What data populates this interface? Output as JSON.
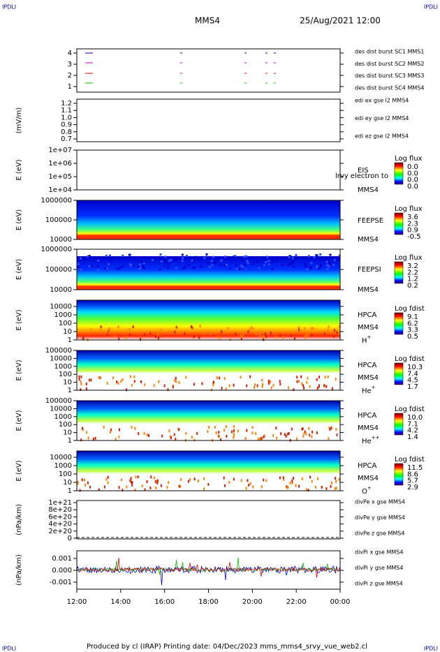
{
  "header": {
    "corner_label": "IPDLI",
    "title": "MMS4",
    "date": "25/Aug/2021 12:00"
  },
  "x_axis": {
    "ticks": [
      "12:00",
      "14:00",
      "16:00",
      "18:00",
      "20:00",
      "22:00",
      "00:00"
    ]
  },
  "panels": [
    {
      "y_ticks": [
        "4",
        "3",
        "2",
        "1"
      ],
      "legend": [
        {
          "text": "des dist burst SC1 MMS1",
          "color": "#0000cc"
        },
        {
          "text": "des dist burst SC2 MMS2",
          "color": "#cc00cc"
        },
        {
          "text": "des dist burst SC3 MMS3",
          "color": "#dd0000"
        },
        {
          "text": "des dist burst SC4 MMS4",
          "color": "#00bb00"
        }
      ]
    },
    {
      "y_label": "(mV/m)",
      "y_ticks": [
        "1.2",
        "1.1",
        "1.0",
        "0.9",
        "0.8",
        "0.7"
      ],
      "legend": [
        {
          "text": "edi ex gse l2 MMS4",
          "color": "#dd0000"
        },
        {
          "text": "edi ey gse l2 MMS4",
          "color": "#00bb00"
        },
        {
          "text": "edi ez gse l2 MMS4",
          "color": "#0000cc"
        }
      ]
    },
    {
      "y_label": "E (eV)",
      "y_ticks": [
        "1e+07",
        "1e+06",
        "1e+05",
        "1e+04"
      ],
      "instrument": [
        "EIS",
        "MMS4"
      ],
      "overflow": "lrvy electron to",
      "colorbar": {
        "title": "Log flux",
        "labels": [
          "0.0",
          "0.0",
          "0.0",
          "0.0"
        ]
      }
    },
    {
      "y_label": "E (eV)",
      "y_ticks": [
        "1000000",
        "100000",
        "10000"
      ],
      "instrument": [
        "FEEPSE",
        "MMS4"
      ],
      "colorbar": {
        "title": "Log flux",
        "labels": [
          "3.6",
          "2.3",
          "0.9",
          "-0.5"
        ]
      }
    },
    {
      "y_label": "E (eV)",
      "y_ticks": [
        "1000000",
        "100000",
        "10000"
      ],
      "instrument": [
        "FEEPSI",
        "MMS4"
      ],
      "colorbar": {
        "title": "Log flux",
        "labels": [
          "3.2",
          "2.2",
          "1.2",
          "0.2"
        ]
      }
    },
    {
      "y_label": "E (eV)",
      "y_ticks": [
        "10000",
        "1000",
        "100",
        "10",
        "1"
      ],
      "instrument": [
        "HPCA",
        "MMS4"
      ],
      "species": "H",
      "charge": "+",
      "colorbar": {
        "title": "Log fdist",
        "labels": [
          "9.1",
          "6.2",
          "3.3",
          "0.5"
        ]
      }
    },
    {
      "y_label": "E (eV)",
      "y_ticks": [
        "100000",
        "10000",
        "1000",
        "100",
        "10",
        "1"
      ],
      "instrument": [
        "HPCA",
        "MMS4"
      ],
      "species": "He",
      "charge": "+",
      "colorbar": {
        "title": "Log fdist",
        "labels": [
          "10.3",
          "7.4",
          "4.5",
          "1.7"
        ]
      }
    },
    {
      "y_label": "E (eV)",
      "y_ticks": [
        "100000",
        "10000",
        "1000",
        "100",
        "10",
        "1"
      ],
      "instrument": [
        "HPCA",
        "MMS4"
      ],
      "species": "He",
      "charge": "++",
      "colorbar": {
        "title": "Log fdist",
        "labels": [
          "10.0",
          "7.1",
          "4.2",
          "1.4"
        ]
      }
    },
    {
      "y_label": "E (eV)",
      "y_ticks": [
        "10000",
        "1000",
        "100",
        "10",
        "1"
      ],
      "instrument": [
        "HPCA",
        "MMS4"
      ],
      "species": "O",
      "charge": "+",
      "colorbar": {
        "title": "Log fdist",
        "labels": [
          "11.5",
          "8.6",
          "5.7",
          "2.9"
        ]
      }
    },
    {
      "y_label": "(nPa/km)",
      "y_ticks": [
        "1e+21",
        "8e+20",
        "6e+20",
        "4e+20",
        "2e+20",
        "0"
      ],
      "legend": [
        {
          "text": "divPe x gse MMS4",
          "color": "#dd0000"
        },
        {
          "text": "divPe y gse MMS4",
          "color": "#00bb00"
        },
        {
          "text": "divPe z gse MMS4",
          "color": "#0000cc"
        }
      ]
    },
    {
      "y_label": "(nPa/km)",
      "y_ticks": [
        "0.001",
        "0.000",
        "-0.001"
      ],
      "legend": [
        {
          "text": "divPi x gse MMS4",
          "color": "#dd0000"
        },
        {
          "text": "divPi y gse MMS4",
          "color": "#00bb00"
        },
        {
          "text": "divPi z gse MMS4",
          "color": "#0000cc"
        }
      ]
    }
  ],
  "footer": "Produced by cl (IRAP)   Printing date: 04/Dec/2023   mms_mms4_srvy_vue_web2.cl"
}
